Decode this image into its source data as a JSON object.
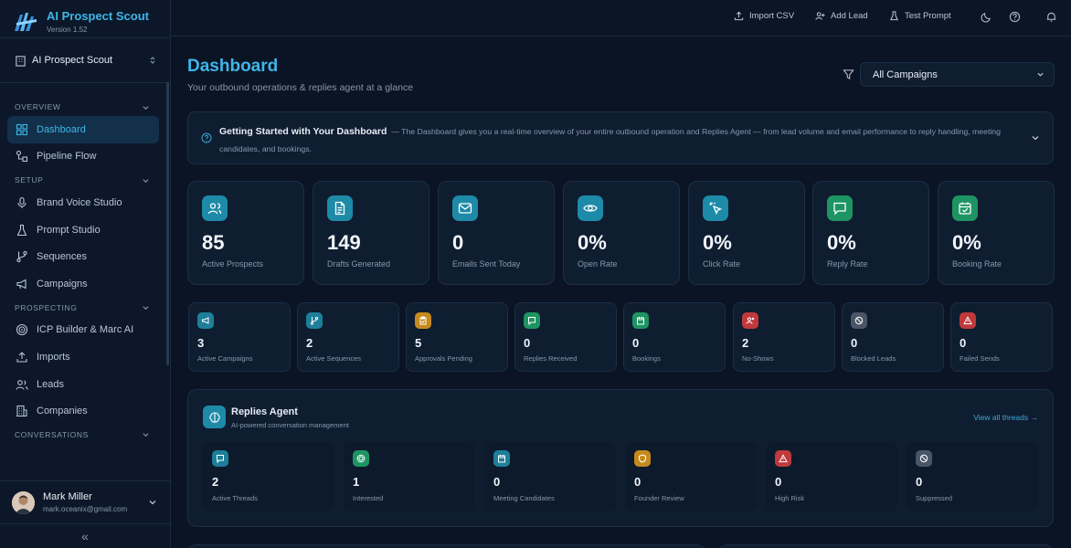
{
  "brand": {
    "name": "AI Prospect Scout",
    "version": "Version 1.52"
  },
  "workspace": {
    "label": "AI Prospect Scout"
  },
  "sidebar": {
    "sections": [
      {
        "label": "OVERVIEW",
        "items": [
          {
            "label": "Dashboard",
            "icon": "grid-icon",
            "active": true
          },
          {
            "label": "Pipeline Flow",
            "icon": "flow-icon"
          }
        ]
      },
      {
        "label": "SETUP",
        "items": [
          {
            "label": "Brand Voice Studio",
            "icon": "mic-icon"
          },
          {
            "label": "Prompt Studio",
            "icon": "flask-icon"
          },
          {
            "label": "Sequences",
            "icon": "branch-icon"
          },
          {
            "label": "Campaigns",
            "icon": "megaphone-icon"
          }
        ]
      },
      {
        "label": "PROSPECTING",
        "items": [
          {
            "label": "ICP Builder & Marc AI",
            "icon": "target-icon"
          },
          {
            "label": "Imports",
            "icon": "upload-icon"
          },
          {
            "label": "Leads",
            "icon": "users-icon"
          },
          {
            "label": "Companies",
            "icon": "building-icon"
          }
        ]
      },
      {
        "label": "CONVERSATIONS",
        "items": []
      }
    ]
  },
  "user": {
    "name": "Mark Miller",
    "email": "mark.oceanix@gmail.com"
  },
  "collapse": "«",
  "topbar": {
    "import_csv": "Import CSV",
    "add_lead": "Add Lead",
    "test_prompt": "Test Prompt"
  },
  "page": {
    "title": "Dashboard",
    "subtitle": "Your outbound operations & replies agent at a glance"
  },
  "campaign_filter": {
    "selected": "All Campaigns"
  },
  "banner": {
    "title": "Getting Started with Your Dashboard",
    "text": "— The Dashboard gives you a real-time overview of your entire outbound operation and Replies Agent — from lead volume and email performance to reply handling, meeting candidates, and bookings."
  },
  "stats": [
    {
      "value": "85",
      "label": "Active Prospects",
      "icon": "users-icon",
      "color": "#1d8aa8"
    },
    {
      "value": "149",
      "label": "Drafts Generated",
      "icon": "document-icon",
      "color": "#1d8aa8"
    },
    {
      "value": "0",
      "label": "Emails Sent Today",
      "icon": "mail-icon",
      "color": "#1d8aa8"
    },
    {
      "value": "0%",
      "label": "Open Rate",
      "icon": "eye-icon",
      "color": "#1d8aa8"
    },
    {
      "value": "0%",
      "label": "Click Rate",
      "icon": "cursor-click-icon",
      "color": "#1d8aa8"
    },
    {
      "value": "0%",
      "label": "Reply Rate",
      "icon": "message-icon",
      "color": "#1e9463"
    },
    {
      "value": "0%",
      "label": "Booking Rate",
      "icon": "calendar-check-icon",
      "color": "#1e9463"
    }
  ],
  "mini_stats": [
    {
      "value": "3",
      "label": "Active Campaigns",
      "icon": "megaphone-icon",
      "color": "#1d7f99"
    },
    {
      "value": "2",
      "label": "Active Sequences",
      "icon": "branch-icon",
      "color": "#1d7f99"
    },
    {
      "value": "5",
      "label": "Approvals Pending",
      "icon": "clipboard-icon",
      "color": "#c58a1d"
    },
    {
      "value": "0",
      "label": "Replies Received",
      "icon": "message-icon",
      "color": "#1e9463"
    },
    {
      "value": "0",
      "label": "Bookings",
      "icon": "calendar-icon",
      "color": "#1e9463"
    },
    {
      "value": "2",
      "label": "No-Shows",
      "icon": "user-x-icon",
      "color": "#c0393b"
    },
    {
      "value": "0",
      "label": "Blocked Leads",
      "icon": "ban-icon",
      "color": "#4a5668"
    },
    {
      "value": "0",
      "label": "Failed Sends",
      "icon": "alert-icon",
      "color": "#c0393b"
    }
  ],
  "agent": {
    "title": "Replies Agent",
    "subtitle": "AI-powered conversation management",
    "link": "View all threads →",
    "tiles": [
      {
        "value": "2",
        "label": "Active Threads",
        "icon": "message-icon",
        "color": "#1d7f99"
      },
      {
        "value": "1",
        "label": "Interested",
        "icon": "target-icon",
        "color": "#1e9463"
      },
      {
        "value": "0",
        "label": "Meeting Candidates",
        "icon": "calendar-icon",
        "color": "#1d7f99"
      },
      {
        "value": "0",
        "label": "Founder Review",
        "icon": "shield-icon",
        "color": "#c58a1d"
      },
      {
        "value": "0",
        "label": "High Risk",
        "icon": "alert-icon",
        "color": "#c0393b"
      },
      {
        "value": "0",
        "label": "Suppressed",
        "icon": "ban-icon",
        "color": "#4a5668"
      }
    ]
  }
}
